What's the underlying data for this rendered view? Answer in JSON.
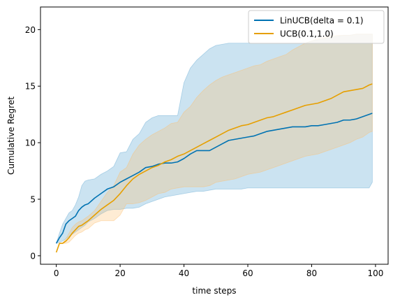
{
  "chart_data": {
    "type": "line",
    "title": "",
    "xlabel": "time steps",
    "ylabel": "Cumulative Regret",
    "xlim": [
      -4.95,
      103.95
    ],
    "ylim": [
      -0.75,
      22
    ],
    "xticks": [
      0,
      20,
      40,
      60,
      80,
      100
    ],
    "xtick_labels": [
      "0",
      "20",
      "40",
      "60",
      "80",
      "100"
    ],
    "yticks": [
      0,
      5,
      10,
      15,
      20
    ],
    "ytick_labels": [
      "0",
      "5",
      "10",
      "15",
      "20"
    ],
    "grid": false,
    "legend_position": "top-right",
    "series": [
      {
        "name": "LinUCB(delta = 0.1)",
        "color": "#0072b2",
        "band_color": "#6baed6",
        "x": [
          0,
          1,
          2,
          3,
          4,
          5,
          6,
          7,
          8,
          9,
          10,
          12,
          14,
          16,
          18,
          20,
          22,
          24,
          26,
          28,
          30,
          32,
          34,
          36,
          38,
          40,
          42,
          44,
          46,
          48,
          50,
          52,
          54,
          56,
          58,
          60,
          62,
          64,
          66,
          68,
          70,
          72,
          74,
          76,
          78,
          80,
          82,
          84,
          86,
          88,
          90,
          92,
          94,
          96,
          98,
          99
        ],
        "values": [
          1.1,
          1.6,
          2.0,
          2.8,
          3.1,
          3.3,
          3.5,
          4.0,
          4.3,
          4.5,
          4.6,
          5.1,
          5.5,
          5.9,
          6.1,
          6.5,
          6.8,
          7.1,
          7.4,
          7.8,
          7.9,
          8.1,
          8.2,
          8.2,
          8.3,
          8.6,
          9.0,
          9.3,
          9.3,
          9.3,
          9.6,
          9.9,
          10.2,
          10.3,
          10.4,
          10.5,
          10.6,
          10.8,
          11.0,
          11.1,
          11.2,
          11.3,
          11.4,
          11.4,
          11.4,
          11.5,
          11.5,
          11.6,
          11.7,
          11.8,
          12.0,
          12.0,
          12.1,
          12.3,
          12.5,
          12.6
        ],
        "lower": [
          1.1,
          1.2,
          1.3,
          1.5,
          1.7,
          1.9,
          2.1,
          2.3,
          2.5,
          2.7,
          3.0,
          3.3,
          3.7,
          4.0,
          4.1,
          4.1,
          4.2,
          4.2,
          4.3,
          4.6,
          4.8,
          5.0,
          5.2,
          5.3,
          5.4,
          5.5,
          5.6,
          5.7,
          5.7,
          5.8,
          5.9,
          5.9,
          5.9,
          5.9,
          5.9,
          6.0,
          6.0,
          6.0,
          6.0,
          6.0,
          6.0,
          6.0,
          6.0,
          6.0,
          6.0,
          6.0,
          6.0,
          6.0,
          6.0,
          6.0,
          6.0,
          6.0,
          6.0,
          6.0,
          6.0,
          6.5
        ],
        "upper": [
          1.1,
          2.0,
          2.8,
          3.3,
          3.8,
          4.0,
          4.5,
          5.2,
          6.2,
          6.6,
          6.7,
          6.8,
          7.2,
          7.5,
          7.9,
          9.1,
          9.2,
          10.3,
          10.8,
          11.8,
          12.2,
          12.4,
          12.4,
          12.4,
          12.4,
          15.3,
          16.6,
          17.3,
          17.8,
          18.3,
          18.6,
          18.7,
          18.8,
          18.8,
          18.8,
          18.8,
          18.8,
          18.8,
          18.8,
          18.8,
          18.8,
          18.8,
          18.8,
          18.8,
          18.8,
          19.0,
          19.1,
          19.2,
          19.3,
          19.4,
          19.5,
          19.5,
          19.6,
          19.6,
          19.6,
          19.6
        ]
      },
      {
        "name": "UCB(0.1,1.0)",
        "color": "#e69f00",
        "band_color": "#fdbf6f",
        "x": [
          0,
          1,
          2,
          3,
          4,
          5,
          6,
          7,
          8,
          9,
          10,
          12,
          14,
          16,
          18,
          20,
          22,
          24,
          26,
          28,
          30,
          32,
          34,
          36,
          38,
          40,
          42,
          44,
          46,
          48,
          50,
          52,
          54,
          56,
          58,
          60,
          62,
          64,
          66,
          68,
          70,
          72,
          74,
          76,
          78,
          80,
          82,
          84,
          86,
          88,
          90,
          92,
          94,
          96,
          98,
          99
        ],
        "values": [
          0.3,
          1.1,
          1.1,
          1.3,
          1.6,
          2.0,
          2.3,
          2.6,
          2.7,
          2.9,
          3.1,
          3.6,
          4.1,
          4.5,
          4.9,
          5.5,
          6.2,
          6.8,
          7.2,
          7.5,
          7.8,
          8.0,
          8.3,
          8.5,
          8.8,
          9.0,
          9.3,
          9.6,
          9.9,
          10.2,
          10.5,
          10.8,
          11.1,
          11.3,
          11.5,
          11.6,
          11.8,
          12.0,
          12.2,
          12.3,
          12.5,
          12.7,
          12.9,
          13.1,
          13.3,
          13.4,
          13.5,
          13.7,
          13.9,
          14.2,
          14.5,
          14.6,
          14.7,
          14.8,
          15.1,
          15.2
        ],
        "lower": [
          0.3,
          1.1,
          1.1,
          1.1,
          1.2,
          1.5,
          1.8,
          2.0,
          2.1,
          2.3,
          2.4,
          2.9,
          3.1,
          3.1,
          3.1,
          3.6,
          4.6,
          4.6,
          4.7,
          4.9,
          5.2,
          5.5,
          5.6,
          5.9,
          6.0,
          6.1,
          6.1,
          6.1,
          6.1,
          6.2,
          6.5,
          6.6,
          6.7,
          6.8,
          7.0,
          7.2,
          7.3,
          7.4,
          7.6,
          7.8,
          8.0,
          8.2,
          8.4,
          8.6,
          8.8,
          8.9,
          9.0,
          9.2,
          9.4,
          9.6,
          9.8,
          10.0,
          10.3,
          10.5,
          10.9,
          11.0
        ],
        "upper": [
          0.3,
          1.1,
          1.1,
          1.5,
          2.0,
          2.5,
          2.8,
          3.0,
          3.1,
          3.3,
          3.5,
          4.0,
          4.8,
          5.6,
          6.2,
          7.4,
          7.8,
          9.0,
          9.8,
          10.3,
          10.7,
          11.0,
          11.3,
          11.7,
          11.8,
          12.7,
          13.2,
          14.0,
          14.6,
          15.1,
          15.5,
          15.8,
          16.0,
          16.2,
          16.4,
          16.6,
          16.8,
          16.9,
          17.2,
          17.4,
          17.6,
          17.8,
          18.2,
          18.5,
          18.8,
          19.0,
          19.2,
          19.3,
          19.4,
          19.5,
          19.5,
          19.5,
          19.6,
          19.6,
          19.6,
          19.6
        ]
      }
    ]
  }
}
